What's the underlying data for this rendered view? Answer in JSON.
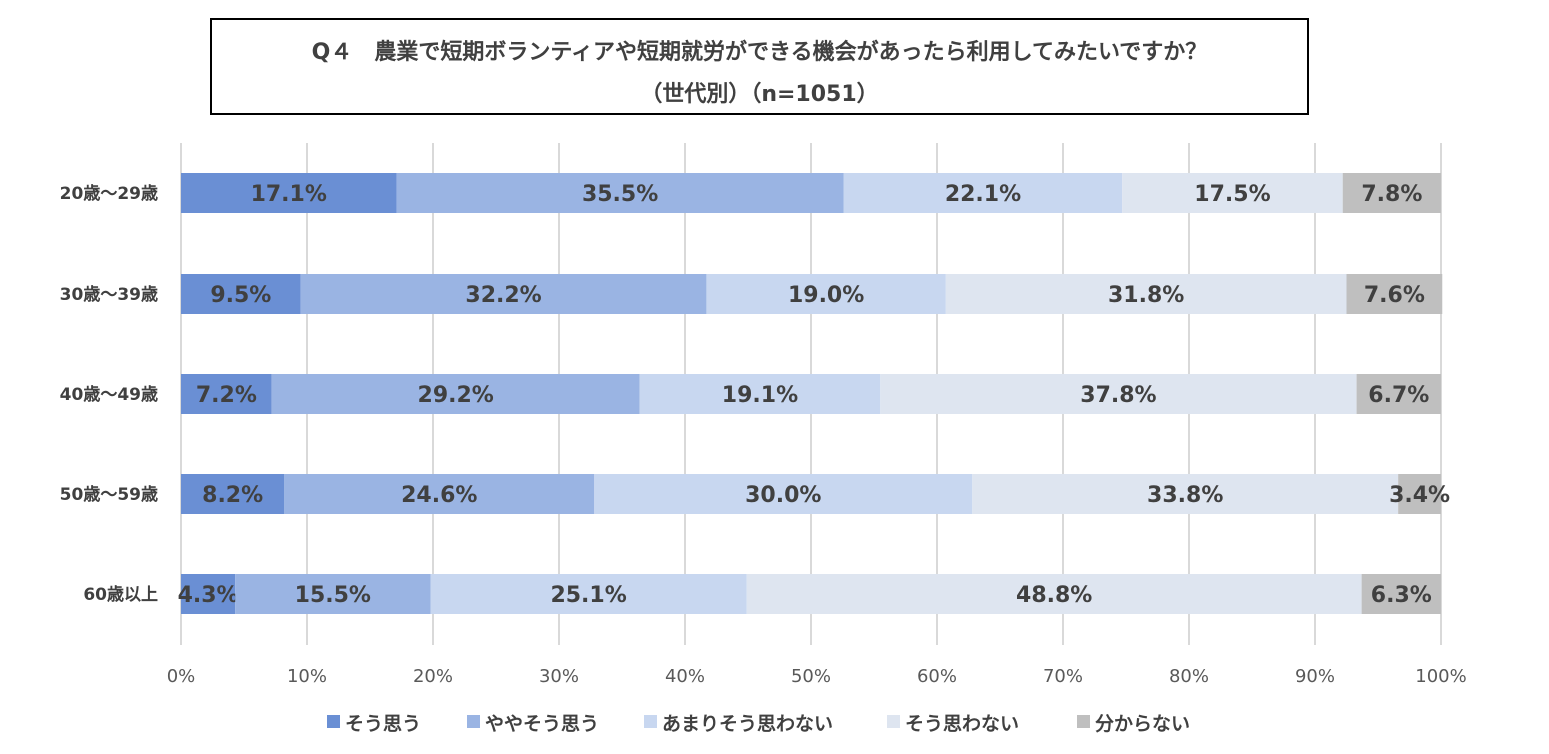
{
  "title": {
    "line1": "Q４　農業で短期ボランティアや短期就労ができる機会があったら利用してみたいですか？",
    "line2": "（世代別）（n=1051）"
  },
  "chart_data": {
    "type": "bar",
    "orientation": "horizontal",
    "stacked": true,
    "percent_stacked": true,
    "categories": [
      "20歳～29歳",
      "30歳～39歳",
      "40歳～49歳",
      "50歳～59歳",
      "60歳以上"
    ],
    "series": [
      {
        "name": "そう思う",
        "color": "#6a8fd4",
        "values": [
          17.1,
          9.5,
          7.2,
          8.2,
          4.3
        ]
      },
      {
        "name": "ややそう思う",
        "color": "#9ab4e3",
        "values": [
          35.5,
          32.2,
          29.2,
          24.6,
          15.5
        ]
      },
      {
        "name": "あまりそう思わない",
        "color": "#c8d7f0",
        "values": [
          22.1,
          19.0,
          19.1,
          30.0,
          25.1
        ]
      },
      {
        "name": "そう思わない",
        "color": "#dee5f0",
        "values": [
          17.5,
          31.8,
          37.8,
          33.8,
          48.8
        ]
      },
      {
        "name": "分からない",
        "color": "#bfbfbf",
        "values": [
          7.8,
          7.6,
          6.7,
          3.4,
          6.3
        ]
      }
    ],
    "data_labels": [
      [
        "17.1%",
        "35.5%",
        "22.1%",
        "17.5%",
        "7.8%"
      ],
      [
        "9.5%",
        "32.2%",
        "19.0%",
        "31.8%",
        "7.6%"
      ],
      [
        "7.2%",
        "29.2%",
        "19.1%",
        "37.8%",
        "6.7%"
      ],
      [
        "8.2%",
        "24.6%",
        "30.0%",
        "33.8%",
        "3.4%"
      ],
      [
        "4.3%",
        "15.5%",
        "25.1%",
        "48.8%",
        "6.3%"
      ]
    ],
    "x_ticks": [
      "0%",
      "10%",
      "20%",
      "30%",
      "40%",
      "50%",
      "60%",
      "70%",
      "80%",
      "90%",
      "100%"
    ],
    "xlim": [
      0,
      100
    ],
    "grid": true,
    "legend_position": "bottom",
    "colors": {
      "grid": "#d9d9d9",
      "axis_text": "#595959",
      "label_text": "#404040"
    }
  }
}
